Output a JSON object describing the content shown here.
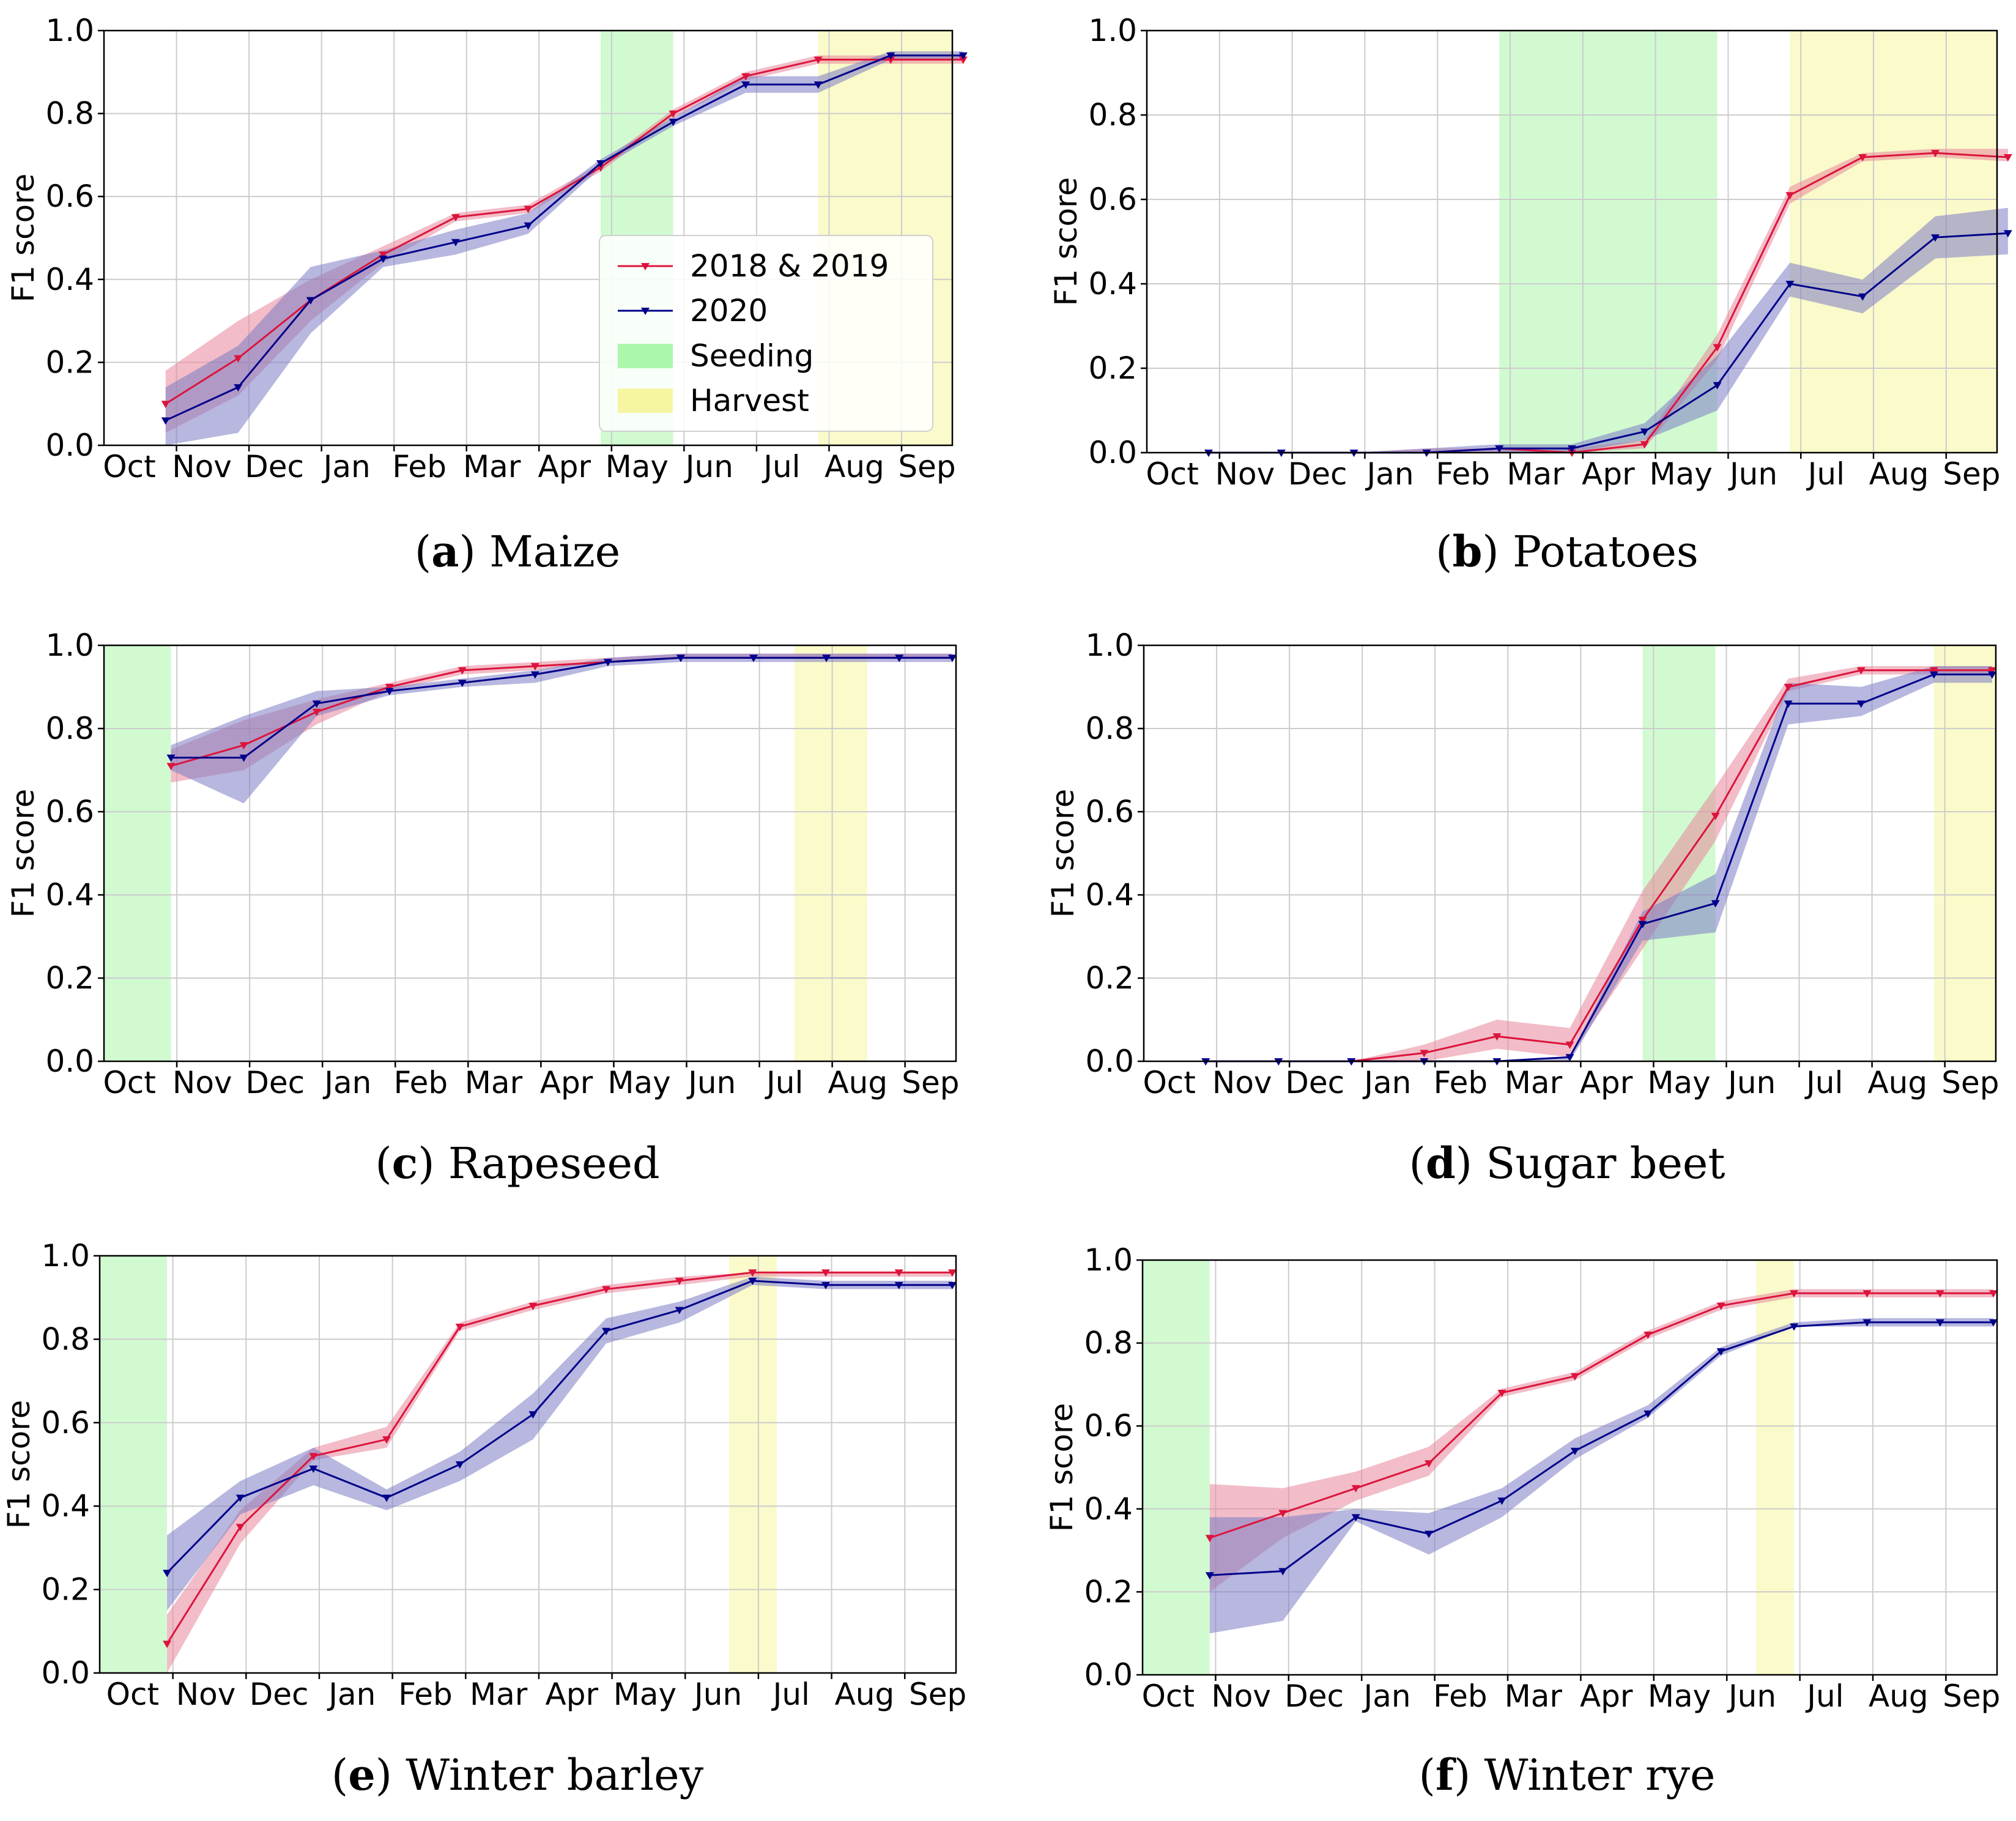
{
  "colors": {
    "series_2018_2019": "#dc143c",
    "series_2020": "#00008b",
    "band_2018_2019": "#e8869a",
    "band_2020": "#7b7bc4",
    "seeding": "#98f598",
    "harvest": "#f5f598",
    "grid": "#cccccc"
  },
  "legend": {
    "entries": [
      "2018 & 2019",
      "2020",
      "Seeding",
      "Harvest"
    ]
  },
  "chart_data": [
    {
      "type": "line",
      "caption_letter": "a",
      "title": "Maize",
      "ylabel": "F1 score",
      "ylim": [
        0,
        1
      ],
      "yticks": [
        "0.0",
        "0.2",
        "0.4",
        "0.6",
        "0.8",
        "1.0"
      ],
      "month_labels": [
        "Oct",
        "Nov",
        "Dec",
        "Jan",
        "Feb",
        "Mar",
        "Apr",
        "May",
        "Jun",
        "Jul",
        "Aug",
        "Sep"
      ],
      "xlim": [
        0,
        11.7
      ],
      "label_x": [
        0.35,
        1.35,
        2.35,
        3.35,
        4.35,
        5.35,
        6.35,
        7.35,
        8.35,
        9.35,
        10.35,
        11.35
      ],
      "grid_x": [
        1,
        2,
        3,
        4,
        5,
        6,
        7,
        8,
        9,
        10,
        11
      ],
      "seeding": [
        [
          6.85,
          7.85
        ]
      ],
      "harvest": [
        [
          9.85,
          11.7
        ]
      ],
      "legend_shown": true,
      "series": [
        {
          "name": "2018 & 2019",
          "x": [
            0.85,
            1.85,
            2.85,
            3.85,
            4.85,
            5.85,
            6.85,
            7.85,
            8.85,
            9.85,
            10.85,
            11.85
          ],
          "values": [
            0.1,
            0.21,
            0.35,
            0.46,
            0.55,
            0.57,
            0.67,
            0.8,
            0.89,
            0.93,
            0.93,
            0.93
          ],
          "lower": [
            0.03,
            0.12,
            0.3,
            0.44,
            0.54,
            0.56,
            0.66,
            0.79,
            0.88,
            0.92,
            0.92,
            0.92
          ],
          "upper": [
            0.18,
            0.3,
            0.4,
            0.48,
            0.56,
            0.58,
            0.68,
            0.81,
            0.9,
            0.94,
            0.94,
            0.94
          ]
        },
        {
          "name": "2020",
          "x": [
            0.85,
            1.85,
            2.85,
            3.85,
            4.85,
            5.85,
            6.85,
            7.85,
            8.85,
            9.85,
            10.85,
            11.85
          ],
          "values": [
            0.06,
            0.14,
            0.35,
            0.45,
            0.49,
            0.53,
            0.68,
            0.78,
            0.87,
            0.87,
            0.94,
            0.94
          ],
          "lower": [
            0.0,
            0.03,
            0.27,
            0.43,
            0.46,
            0.51,
            0.67,
            0.77,
            0.85,
            0.85,
            0.93,
            0.93
          ],
          "upper": [
            0.14,
            0.24,
            0.43,
            0.47,
            0.52,
            0.56,
            0.69,
            0.79,
            0.89,
            0.89,
            0.95,
            0.95
          ]
        }
      ]
    },
    {
      "type": "line",
      "caption_letter": "b",
      "title": "Potatoes",
      "ylabel": "F1 score",
      "ylim": [
        0,
        1
      ],
      "yticks": [
        "0.0",
        "0.2",
        "0.4",
        "0.6",
        "0.8",
        "1.0"
      ],
      "month_labels": [
        "Oct",
        "Nov",
        "Dec",
        "Jan",
        "Feb",
        "Mar",
        "Apr",
        "May",
        "Jun",
        "Jul",
        "Aug",
        "Sep"
      ],
      "xlim": [
        0,
        11.7
      ],
      "label_x": [
        0.35,
        1.35,
        2.35,
        3.35,
        4.35,
        5.35,
        6.35,
        7.35,
        8.35,
        9.35,
        10.35,
        11.35
      ],
      "grid_x": [
        1,
        2,
        3,
        4,
        5,
        6,
        7,
        8,
        9,
        10,
        11
      ],
      "seeding": [
        [
          4.85,
          7.85
        ]
      ],
      "harvest": [
        [
          8.85,
          11.7
        ]
      ],
      "legend_shown": false,
      "series": [
        {
          "name": "2018 & 2019",
          "x": [
            0.85,
            1.85,
            2.85,
            3.85,
            4.85,
            5.85,
            6.85,
            7.85,
            8.85,
            9.85,
            10.85,
            11.85
          ],
          "values": [
            0.0,
            0.0,
            0.0,
            0.0,
            0.01,
            0.0,
            0.02,
            0.25,
            0.61,
            0.7,
            0.71,
            0.7
          ],
          "lower": [
            0.0,
            0.0,
            0.0,
            0.0,
            0.0,
            0.0,
            0.01,
            0.22,
            0.59,
            0.69,
            0.7,
            0.69
          ],
          "upper": [
            0.0,
            0.0,
            0.0,
            0.01,
            0.01,
            0.01,
            0.03,
            0.28,
            0.63,
            0.71,
            0.72,
            0.72
          ]
        },
        {
          "name": "2020",
          "x": [
            0.85,
            1.85,
            2.85,
            3.85,
            4.85,
            5.85,
            6.85,
            7.85,
            8.85,
            9.85,
            10.85,
            11.85
          ],
          "values": [
            0.0,
            0.0,
            0.0,
            0.0,
            0.01,
            0.01,
            0.05,
            0.16,
            0.4,
            0.37,
            0.51,
            0.52
          ],
          "lower": [
            0.0,
            0.0,
            0.0,
            0.0,
            0.0,
            0.0,
            0.03,
            0.1,
            0.37,
            0.33,
            0.46,
            0.47
          ],
          "upper": [
            0.0,
            0.0,
            0.0,
            0.01,
            0.02,
            0.02,
            0.07,
            0.23,
            0.45,
            0.41,
            0.56,
            0.58
          ]
        }
      ]
    },
    {
      "type": "line",
      "caption_letter": "c",
      "title": "Rapeseed",
      "ylabel": "F1 score",
      "ylim": [
        0,
        1
      ],
      "yticks": [
        "0.0",
        "0.2",
        "0.4",
        "0.6",
        "0.8",
        "1.0"
      ],
      "month_labels": [
        "Oct",
        "Nov",
        "Dec",
        "Jan",
        "Feb",
        "Mar",
        "Apr",
        "May",
        "Jun",
        "Jul",
        "Aug",
        "Sep"
      ],
      "xlim": [
        0,
        11.7
      ],
      "label_x": [
        0.35,
        1.35,
        2.35,
        3.35,
        4.35,
        5.35,
        6.35,
        7.35,
        8.35,
        9.35,
        10.35,
        11.35
      ],
      "grid_x": [
        1,
        2,
        3,
        4,
        5,
        6,
        7,
        8,
        9,
        10,
        11
      ],
      "seeding": [
        [
          0,
          0.92
        ]
      ],
      "harvest": [
        [
          9.48,
          10.48
        ]
      ],
      "legend_shown": false,
      "series": [
        {
          "name": "2018 & 2019",
          "x": [
            0.92,
            1.92,
            2.92,
            3.92,
            4.92,
            5.92,
            6.92,
            7.92,
            8.92,
            9.92,
            10.92,
            11.65
          ],
          "values": [
            0.71,
            0.76,
            0.84,
            0.9,
            0.94,
            0.95,
            0.96,
            0.97,
            0.97,
            0.97,
            0.97,
            0.97
          ],
          "lower": [
            0.67,
            0.7,
            0.81,
            0.89,
            0.93,
            0.94,
            0.96,
            0.97,
            0.97,
            0.97,
            0.97,
            0.97
          ],
          "upper": [
            0.75,
            0.82,
            0.87,
            0.91,
            0.95,
            0.96,
            0.97,
            0.98,
            0.98,
            0.98,
            0.98,
            0.98
          ]
        },
        {
          "name": "2020",
          "x": [
            0.92,
            1.92,
            2.92,
            3.92,
            4.92,
            5.92,
            6.92,
            7.92,
            8.92,
            9.92,
            10.92,
            11.65
          ],
          "values": [
            0.73,
            0.73,
            0.86,
            0.89,
            0.91,
            0.93,
            0.96,
            0.97,
            0.97,
            0.97,
            0.97,
            0.97
          ],
          "lower": [
            0.7,
            0.62,
            0.83,
            0.88,
            0.9,
            0.91,
            0.95,
            0.96,
            0.96,
            0.96,
            0.96,
            0.96
          ],
          "upper": [
            0.76,
            0.83,
            0.89,
            0.9,
            0.92,
            0.94,
            0.97,
            0.98,
            0.98,
            0.98,
            0.98,
            0.98
          ]
        }
      ]
    },
    {
      "type": "line",
      "caption_letter": "d",
      "title": "Sugar beet",
      "ylabel": "F1 score",
      "ylim": [
        0,
        1
      ],
      "yticks": [
        "0.0",
        "0.2",
        "0.4",
        "0.6",
        "0.8",
        "1.0"
      ],
      "month_labels": [
        "Oct",
        "Nov",
        "Dec",
        "Jan",
        "Feb",
        "Mar",
        "Apr",
        "May",
        "Jun",
        "Jul",
        "Aug",
        "Sep"
      ],
      "xlim": [
        0,
        11.7
      ],
      "label_x": [
        0.35,
        1.35,
        2.35,
        3.35,
        4.35,
        5.35,
        6.35,
        7.35,
        8.35,
        9.35,
        10.35,
        11.35
      ],
      "grid_x": [
        1,
        2,
        3,
        4,
        5,
        6,
        7,
        8,
        9,
        10,
        11
      ],
      "seeding": [
        [
          6.85,
          7.85
        ]
      ],
      "harvest": [
        [
          10.85,
          11.7
        ]
      ],
      "legend_shown": false,
      "series": [
        {
          "name": "2018 & 2019",
          "x": [
            0.85,
            1.85,
            2.85,
            3.85,
            4.85,
            5.85,
            6.85,
            7.85,
            8.85,
            9.85,
            10.85,
            11.65
          ],
          "values": [
            0.0,
            0.0,
            0.0,
            0.02,
            0.06,
            0.04,
            0.34,
            0.59,
            0.9,
            0.94,
            0.94,
            0.94
          ],
          "lower": [
            0.0,
            0.0,
            0.0,
            0.0,
            0.03,
            0.01,
            0.27,
            0.53,
            0.89,
            0.93,
            0.93,
            0.93
          ],
          "upper": [
            0.0,
            0.0,
            0.0,
            0.04,
            0.1,
            0.08,
            0.41,
            0.66,
            0.92,
            0.95,
            0.95,
            0.95
          ]
        },
        {
          "name": "2020",
          "x": [
            0.85,
            1.85,
            2.85,
            3.85,
            4.85,
            5.85,
            6.85,
            7.85,
            8.85,
            9.85,
            10.85,
            11.65
          ],
          "values": [
            0.0,
            0.0,
            0.0,
            0.0,
            0.0,
            0.01,
            0.33,
            0.38,
            0.86,
            0.86,
            0.93,
            0.93
          ],
          "lower": [
            0.0,
            0.0,
            0.0,
            0.0,
            0.0,
            0.0,
            0.29,
            0.31,
            0.81,
            0.83,
            0.91,
            0.91
          ],
          "upper": [
            0.0,
            0.0,
            0.0,
            0.0,
            0.0,
            0.01,
            0.36,
            0.45,
            0.91,
            0.9,
            0.95,
            0.95
          ]
        }
      ]
    },
    {
      "type": "line",
      "caption_letter": "e",
      "title": "Winter barley",
      "ylabel": "F1 score",
      "ylim": [
        0,
        1
      ],
      "yticks": [
        "0.0",
        "0.2",
        "0.4",
        "0.6",
        "0.8",
        "1.0"
      ],
      "month_labels": [
        "Oct",
        "Nov",
        "Dec",
        "Jan",
        "Feb",
        "Mar",
        "Apr",
        "May",
        "Jun",
        "Jul",
        "Aug",
        "Sep"
      ],
      "xlim": [
        0,
        11.7
      ],
      "label_x": [
        0.45,
        1.45,
        2.45,
        3.45,
        4.45,
        5.45,
        6.45,
        7.45,
        8.45,
        9.45,
        10.45,
        11.45
      ],
      "grid_x": [
        1,
        2,
        3,
        4,
        5,
        6,
        7,
        8,
        9,
        10,
        11
      ],
      "seeding": [
        [
          0,
          0.92
        ]
      ],
      "harvest": [
        [
          8.6,
          9.25
        ]
      ],
      "legend_shown": false,
      "series": [
        {
          "name": "2018 & 2019",
          "x": [
            0.92,
            1.92,
            2.92,
            3.92,
            4.92,
            5.92,
            6.92,
            7.92,
            8.92,
            9.92,
            10.92,
            11.65
          ],
          "values": [
            0.07,
            0.35,
            0.52,
            0.56,
            0.83,
            0.88,
            0.92,
            0.94,
            0.96,
            0.96,
            0.96,
            0.96
          ],
          "lower": [
            0.0,
            0.31,
            0.51,
            0.54,
            0.82,
            0.87,
            0.91,
            0.93,
            0.95,
            0.95,
            0.95,
            0.95
          ],
          "upper": [
            0.14,
            0.39,
            0.54,
            0.59,
            0.84,
            0.89,
            0.93,
            0.95,
            0.96,
            0.96,
            0.96,
            0.96
          ]
        },
        {
          "name": "2020",
          "x": [
            0.92,
            1.92,
            2.92,
            3.92,
            4.92,
            5.92,
            6.92,
            7.92,
            8.92,
            9.92,
            10.92,
            11.65
          ],
          "values": [
            0.24,
            0.42,
            0.49,
            0.42,
            0.5,
            0.62,
            0.82,
            0.87,
            0.94,
            0.93,
            0.93,
            0.93
          ],
          "lower": [
            0.15,
            0.38,
            0.45,
            0.39,
            0.46,
            0.56,
            0.79,
            0.84,
            0.93,
            0.92,
            0.92,
            0.92
          ],
          "upper": [
            0.33,
            0.46,
            0.54,
            0.44,
            0.53,
            0.67,
            0.85,
            0.89,
            0.95,
            0.94,
            0.94,
            0.94
          ]
        }
      ]
    },
    {
      "type": "line",
      "caption_letter": "f",
      "title": "Winter rye",
      "ylabel": "F1 score",
      "ylim": [
        0,
        1
      ],
      "yticks": [
        "0.0",
        "0.2",
        "0.4",
        "0.6",
        "0.8",
        "1.0"
      ],
      "month_labels": [
        "Oct",
        "Nov",
        "Dec",
        "Jan",
        "Feb",
        "Mar",
        "Apr",
        "May",
        "Jun",
        "Jul",
        "Aug",
        "Sep"
      ],
      "xlim": [
        0,
        11.7
      ],
      "label_x": [
        0.35,
        1.35,
        2.35,
        3.35,
        4.35,
        5.35,
        6.35,
        7.35,
        8.35,
        9.35,
        10.35,
        11.35
      ],
      "grid_x": [
        1,
        2,
        3,
        4,
        5,
        6,
        7,
        8,
        9,
        10,
        11
      ],
      "seeding": [
        [
          0,
          0.92
        ]
      ],
      "harvest": [
        [
          8.4,
          8.92
        ]
      ],
      "legend_shown": false,
      "series": [
        {
          "name": "2018 & 2019",
          "x": [
            0.92,
            1.92,
            2.92,
            3.92,
            4.92,
            5.92,
            6.92,
            7.92,
            8.92,
            9.92,
            10.92,
            11.65
          ],
          "values": [
            0.33,
            0.39,
            0.45,
            0.51,
            0.68,
            0.72,
            0.82,
            0.89,
            0.92,
            0.92,
            0.92,
            0.92
          ],
          "lower": [
            0.2,
            0.33,
            0.42,
            0.48,
            0.67,
            0.71,
            0.81,
            0.88,
            0.91,
            0.91,
            0.91,
            0.91
          ],
          "upper": [
            0.46,
            0.45,
            0.49,
            0.55,
            0.69,
            0.73,
            0.83,
            0.9,
            0.93,
            0.93,
            0.93,
            0.93
          ]
        },
        {
          "name": "2020",
          "x": [
            0.92,
            1.92,
            2.92,
            3.92,
            4.92,
            5.92,
            6.92,
            7.92,
            8.92,
            9.92,
            10.92,
            11.65
          ],
          "values": [
            0.24,
            0.25,
            0.38,
            0.34,
            0.42,
            0.54,
            0.63,
            0.78,
            0.84,
            0.85,
            0.85,
            0.85
          ],
          "lower": [
            0.1,
            0.13,
            0.37,
            0.29,
            0.38,
            0.52,
            0.62,
            0.77,
            0.84,
            0.84,
            0.84,
            0.84
          ],
          "upper": [
            0.38,
            0.38,
            0.4,
            0.39,
            0.45,
            0.57,
            0.65,
            0.79,
            0.85,
            0.86,
            0.86,
            0.86
          ]
        }
      ]
    }
  ]
}
